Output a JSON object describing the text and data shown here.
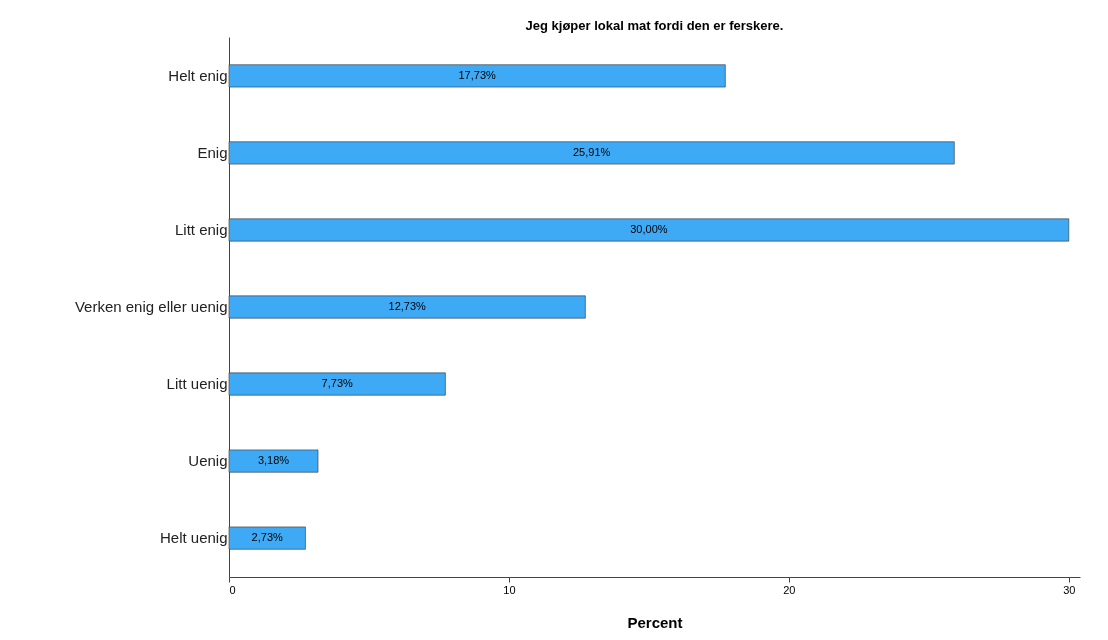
{
  "chart_data": {
    "type": "bar",
    "orientation": "horizontal",
    "title": "Jeg kjøper lokal mat fordi den er ferskere.",
    "xlabel": "Percent",
    "categories": [
      "Helt enig",
      "Enig",
      "Litt enig",
      "Verken enig eller uenig",
      "Litt uenig",
      "Uenig",
      "Helt uenig"
    ],
    "values": [
      17.73,
      25.91,
      30.0,
      12.73,
      7.73,
      3.18,
      2.73
    ],
    "value_labels": [
      "17,73%",
      "25,91%",
      "30,00%",
      "12,73%",
      "7,73%",
      "3,18%",
      "2,73%"
    ],
    "color": "#3ea9f5",
    "xlim": [
      0,
      30.4
    ],
    "xticks": [
      0,
      10,
      20,
      30
    ],
    "grid": false
  }
}
